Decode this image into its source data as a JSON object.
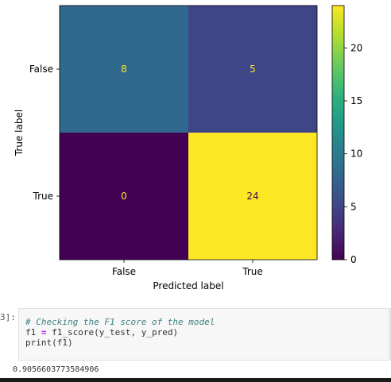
{
  "chart_data": {
    "type": "heatmap",
    "title": "",
    "xlabel": "Predicted label",
    "ylabel": "True label",
    "x_categories": [
      "False",
      "True"
    ],
    "y_categories": [
      "False",
      "True"
    ],
    "matrix": [
      [
        8,
        5
      ],
      [
        0,
        24
      ]
    ],
    "colormap": "viridis",
    "colorbar": {
      "min": 0,
      "max": 24,
      "ticks": [
        "0",
        "5",
        "10",
        "15",
        "20"
      ]
    },
    "colors": {
      "cell_8": "#2c718e",
      "cell_5": "#433e85",
      "cell_0": "#440154",
      "cell_24": "#fde725"
    },
    "text_colors": {
      "on_dark": "#fde725",
      "on_light": "#440154"
    }
  },
  "cell": {
    "prompt": "3]:",
    "code_lines": [
      {
        "comment": "# Checking the F1 score of the model"
      },
      {
        "lhs": "f1",
        "op": "=",
        "rhs": "f1_score(y_test, y_pred)"
      },
      {
        "call": "print(f1)"
      }
    ],
    "output": "0.9056603773584906"
  }
}
